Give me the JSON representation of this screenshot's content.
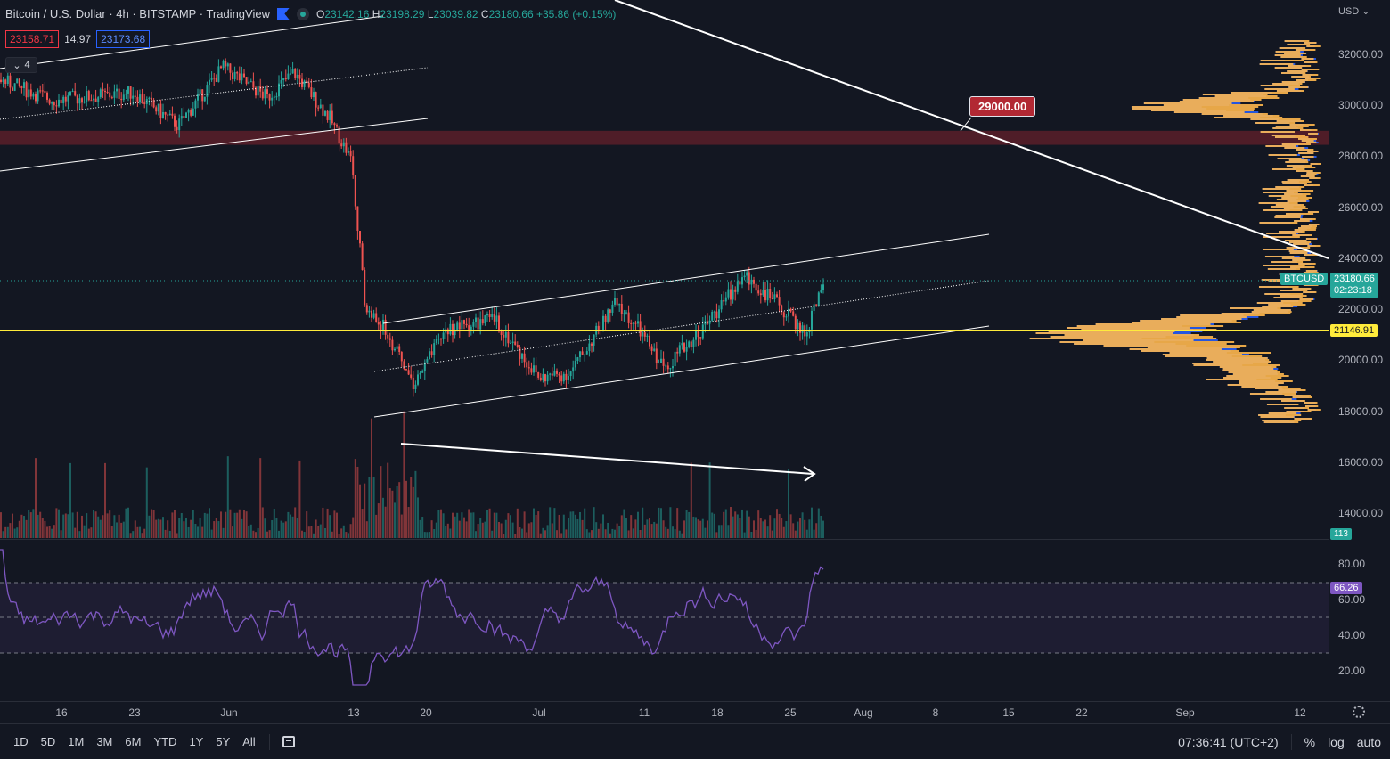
{
  "legend": {
    "symbol": "Bitcoin / U.S. Dollar",
    "interval": "4h",
    "exchange": "BITSTAMP",
    "source": "TradingView",
    "open_key": "O",
    "open": "23142.16",
    "high_key": "H",
    "high": "23198.29",
    "low_key": "L",
    "low": "23039.82",
    "close_key": "C",
    "close": "23180.66",
    "change": "+35.86 (+0.15%)",
    "indicators_count": "4"
  },
  "trade": {
    "sell": "23158.71",
    "spread": "14.97",
    "buy": "23173.68"
  },
  "price_scale": {
    "currency": "USD",
    "ticks": [
      "32000.00",
      "30000.00",
      "28000.00",
      "26000.00",
      "24000.00",
      "22000.00",
      "20000.00",
      "18000.00",
      "16000.00",
      "14000.00"
    ],
    "last_price": "23180.66",
    "countdown": "02:23:18",
    "symbol_tag": "BTCUSD",
    "hline_price": "21146.91",
    "volume_tag": "113"
  },
  "rsi_scale": {
    "ticks": [
      "80.00",
      "60.00",
      "40.00",
      "20.00"
    ],
    "value": "66.26"
  },
  "time_axis": [
    "16",
    "23",
    "Jun",
    "13",
    "20",
    "Jul",
    "11",
    "18",
    "25",
    "Aug",
    "8",
    "15",
    "22",
    "Sep",
    "12"
  ],
  "callout": {
    "label": "29000.00"
  },
  "bottom_bar": {
    "ranges": [
      "1D",
      "5D",
      "1M",
      "3M",
      "6M",
      "YTD",
      "1Y",
      "5Y",
      "All"
    ],
    "clock": "07:36:41 (UTC+2)",
    "percent": "%",
    "log": "log",
    "auto": "auto"
  },
  "colors": {
    "bg": "#131722",
    "up": "#26a69a",
    "down": "#ef5350",
    "hline": "#ffeb3b",
    "vp_up": "#ffb74d",
    "vp_down": "#2962ff",
    "rsi": "#7e57c2"
  }
}
